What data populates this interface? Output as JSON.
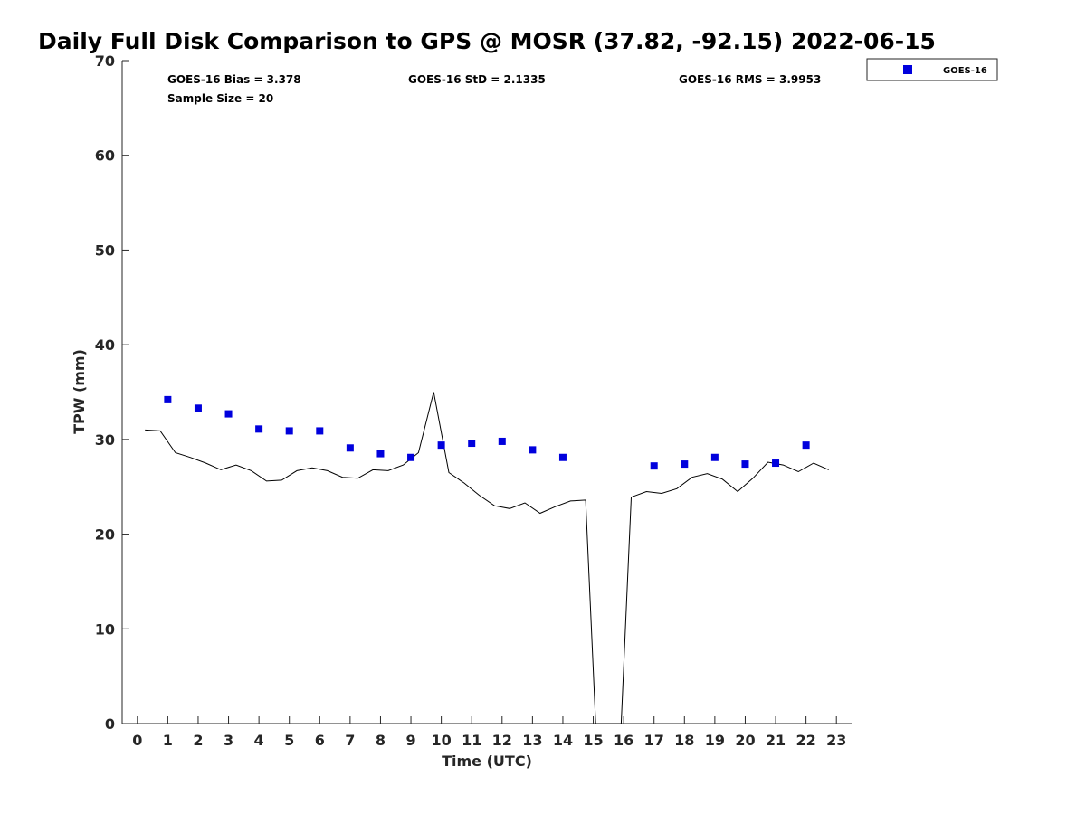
{
  "chart_data": {
    "type": "scatter",
    "title": "Daily Full Disk Comparison to GPS @ MOSR (37.82, -92.15) 2022-06-15",
    "xlabel": "Time (UTC)",
    "ylabel": "TPW (mm)",
    "xlim": [
      -0.5,
      23.5
    ],
    "ylim": [
      0,
      70
    ],
    "x_ticks": [
      0,
      1,
      2,
      3,
      4,
      5,
      6,
      7,
      8,
      9,
      10,
      11,
      12,
      13,
      14,
      15,
      16,
      17,
      18,
      19,
      20,
      21,
      22,
      23
    ],
    "y_ticks": [
      0,
      10,
      20,
      30,
      40,
      50,
      60,
      70
    ],
    "grid": false,
    "legend_position": "top-right-outside",
    "stats": {
      "bias": "GOES-16 Bias = 3.378",
      "std": "GOES-16 StD = 2.1335",
      "rms": "GOES-16 RMS = 3.9953",
      "sample_size": "Sample Size = 20"
    },
    "series": [
      {
        "name": "GOES-16",
        "kind": "scatter",
        "color": "#0000dd",
        "x": [
          1,
          2,
          3,
          4,
          5,
          6,
          7,
          8,
          9,
          10,
          11,
          12,
          13,
          14,
          17,
          18,
          19,
          20,
          21,
          22
        ],
        "y": [
          34.2,
          33.3,
          32.7,
          31.1,
          30.9,
          30.9,
          29.1,
          28.5,
          28.1,
          29.4,
          29.6,
          29.8,
          28.9,
          28.1,
          27.2,
          27.4,
          28.1,
          27.4,
          27.5,
          29.4
        ]
      },
      {
        "name": "GPS",
        "kind": "line",
        "color": "#000000",
        "x": [
          0.25,
          0.75,
          1.25,
          1.75,
          2.25,
          2.75,
          3.25,
          3.75,
          4.25,
          4.75,
          5.25,
          5.75,
          6.25,
          6.75,
          7.25,
          7.75,
          8.25,
          8.75,
          9.25,
          9.75,
          10.25,
          10.75,
          11.25,
          11.75,
          12.25,
          12.75,
          13.25,
          13.75,
          14.25,
          14.75,
          15.08,
          15.92,
          16.25,
          16.75,
          17.25,
          17.75,
          18.25,
          18.75,
          19.25,
          19.75,
          20.25,
          20.75,
          21.25,
          21.75,
          22.25,
          22.75
        ],
        "y": [
          31.0,
          30.9,
          28.6,
          28.1,
          27.5,
          26.8,
          27.3,
          26.7,
          25.6,
          25.7,
          26.7,
          27.0,
          26.7,
          26.0,
          25.9,
          26.8,
          26.7,
          27.3,
          28.6,
          35.0,
          26.5,
          25.4,
          24.1,
          23.0,
          22.7,
          23.3,
          22.2,
          22.9,
          23.5,
          23.6,
          0.0,
          0.0,
          23.9,
          24.5,
          24.3,
          24.8,
          26.0,
          26.4,
          25.8,
          24.5,
          25.9,
          27.6,
          27.3,
          26.6,
          27.5,
          26.8
        ]
      }
    ]
  }
}
